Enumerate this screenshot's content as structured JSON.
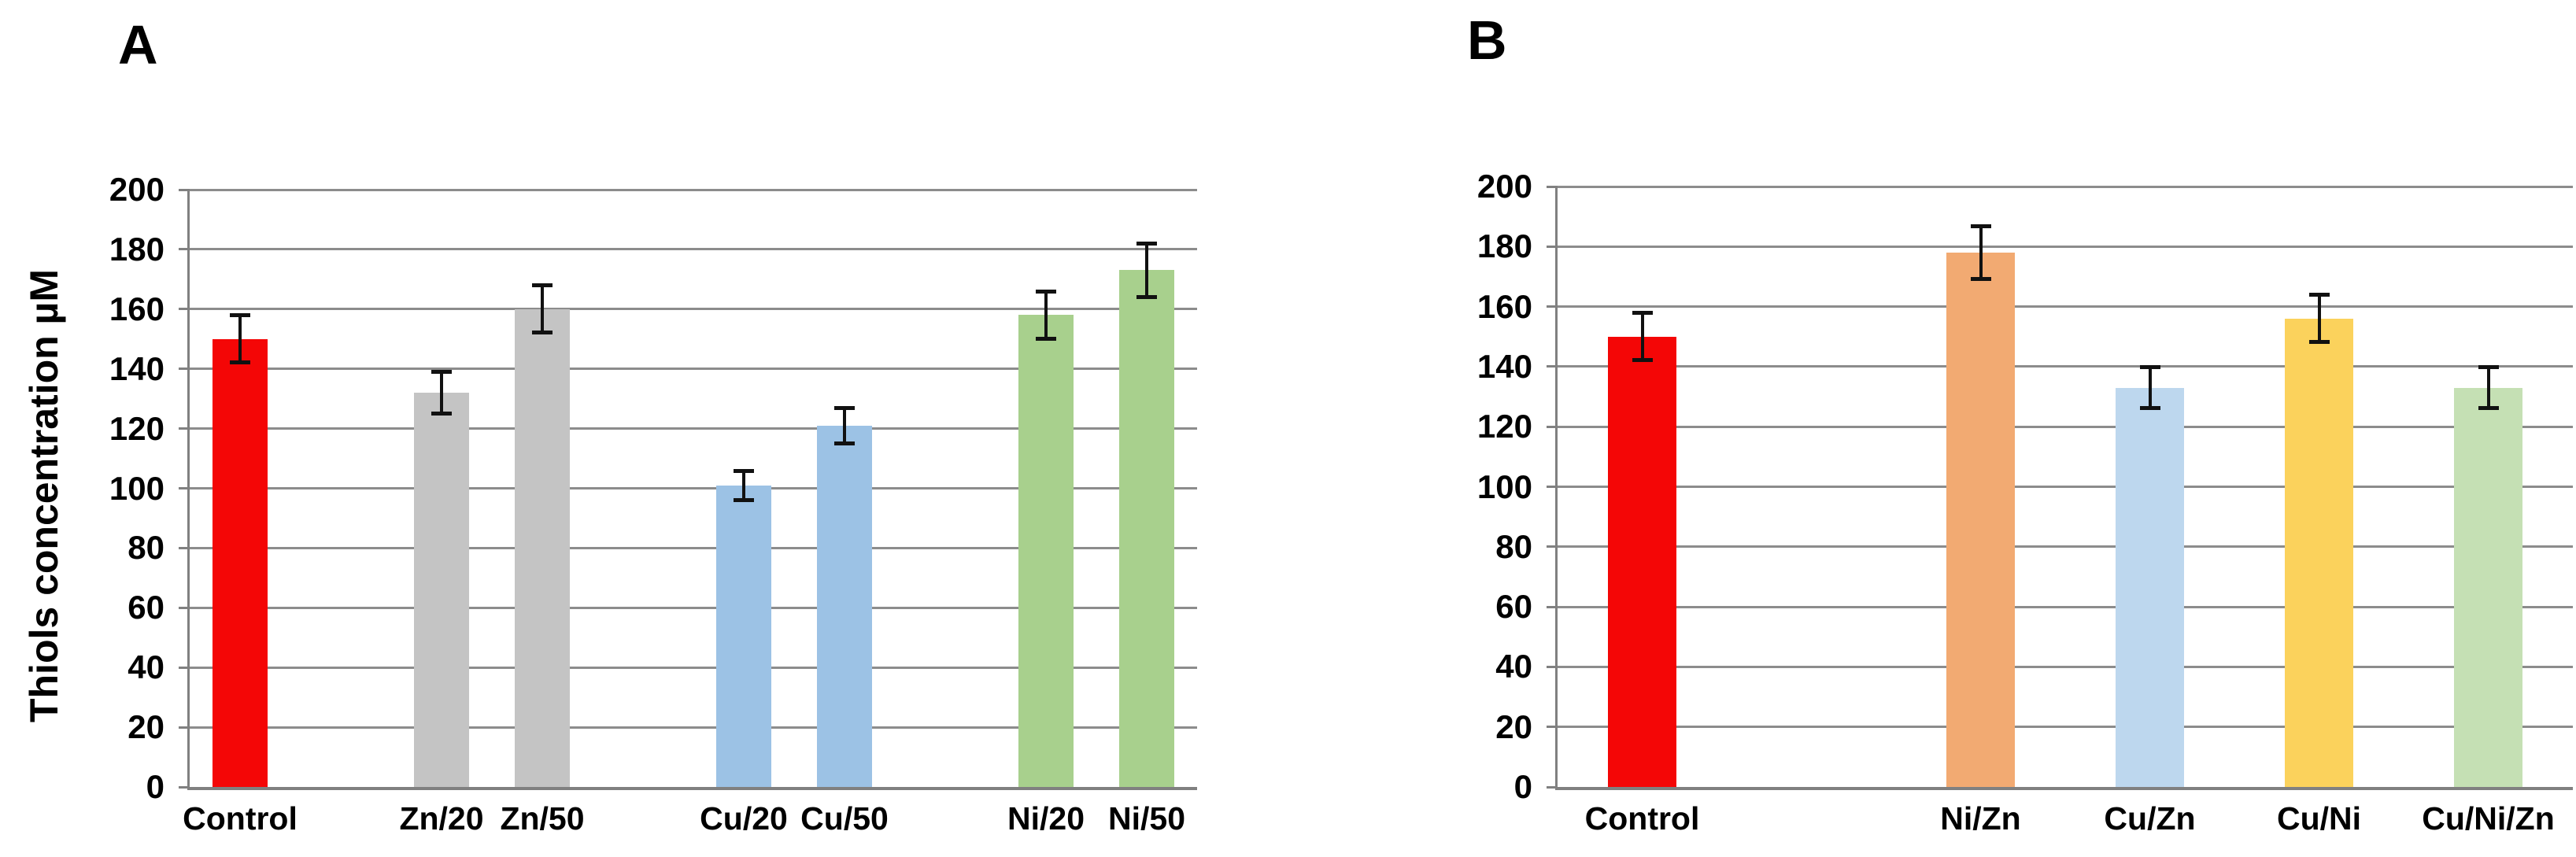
{
  "figure": {
    "panel_a_label": "A",
    "panel_b_label": "B",
    "y_axis_title": "Thiols concentration µM"
  },
  "colors": {
    "background": "#ffffff",
    "axis": "#808080",
    "gridline": "#8c8c8c",
    "error_bar": "#111111",
    "text": "#000000"
  },
  "chart_data": [
    {
      "type": "bar",
      "panel": "A",
      "title": "",
      "xlabel": "",
      "ylabel": "Thiols concentration µM",
      "ylim": [
        0,
        200
      ],
      "ytick_step": 20,
      "grid": true,
      "legend": "none",
      "categories": [
        "Control",
        "Zn/20",
        "Zn/50",
        "Cu/20",
        "Cu/50",
        "Ni/20",
        "Ni/50"
      ],
      "values": [
        150,
        132,
        160,
        101,
        121,
        158,
        173
      ],
      "error_bars": [
        8,
        7,
        8,
        5,
        6,
        8,
        9
      ],
      "bar_colors": [
        "#f40606",
        "#c4c4c4",
        "#c4c4c4",
        "#9cc2e5",
        "#9cc2e5",
        "#a8d08d",
        "#a8d08d"
      ],
      "slots": [
        0,
        2,
        3,
        5,
        6,
        8,
        9
      ],
      "n_slots": 10,
      "bar_width_pct": 5.5
    },
    {
      "type": "bar",
      "panel": "B",
      "title": "",
      "xlabel": "",
      "ylabel": "",
      "ylim": [
        0,
        200
      ],
      "ytick_step": 20,
      "grid": true,
      "legend": "none",
      "categories": [
        "Control",
        "Ni/Zn",
        "Cu/Zn",
        "Cu/Ni",
        "Cu/Ni/Zn"
      ],
      "values": [
        150,
        178,
        133,
        156,
        133
      ],
      "error_bars": [
        8,
        9,
        7,
        8,
        7
      ],
      "bar_colors": [
        "#f40606",
        "#f2aa72",
        "#bdd7ee",
        "#fbd25c",
        "#c5e0b4"
      ],
      "slots": [
        0,
        2,
        3,
        4,
        5
      ],
      "n_slots": 6,
      "bar_width_pct": 6.8
    }
  ]
}
